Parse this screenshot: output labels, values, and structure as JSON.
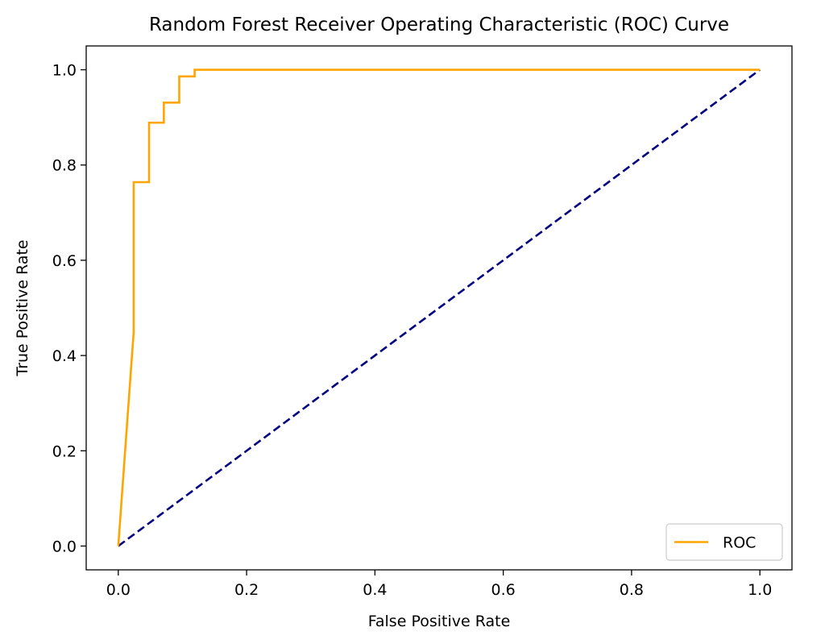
{
  "chart_data": {
    "type": "line",
    "title": "Random Forest Receiver Operating Characteristic (ROC) Curve",
    "xlabel": "False Positive Rate",
    "ylabel": "True Positive Rate",
    "xlim": [
      -0.05,
      1.05
    ],
    "ylim": [
      -0.05,
      1.05
    ],
    "xticks": [
      "0.0",
      "0.2",
      "0.4",
      "0.6",
      "0.8",
      "1.0"
    ],
    "yticks": [
      "0.0",
      "0.2",
      "0.4",
      "0.6",
      "0.8",
      "1.0"
    ],
    "grid": false,
    "legend": {
      "location": "lower-right",
      "entries": [
        "ROC"
      ]
    },
    "series": [
      {
        "name": "ROC",
        "color": "#ffa500",
        "style": "solid",
        "x": [
          0.0,
          0.024,
          0.024,
          0.048,
          0.048,
          0.071,
          0.071,
          0.095,
          0.095,
          0.119,
          0.119,
          1.0
        ],
        "y": [
          0.0,
          0.45,
          0.764,
          0.764,
          0.889,
          0.889,
          0.931,
          0.931,
          0.986,
          0.986,
          1.0,
          1.0
        ]
      },
      {
        "color": "#000080",
        "style": "dashed",
        "x": [
          0.0,
          1.0
        ],
        "y": [
          0.0,
          1.0
        ]
      }
    ]
  }
}
